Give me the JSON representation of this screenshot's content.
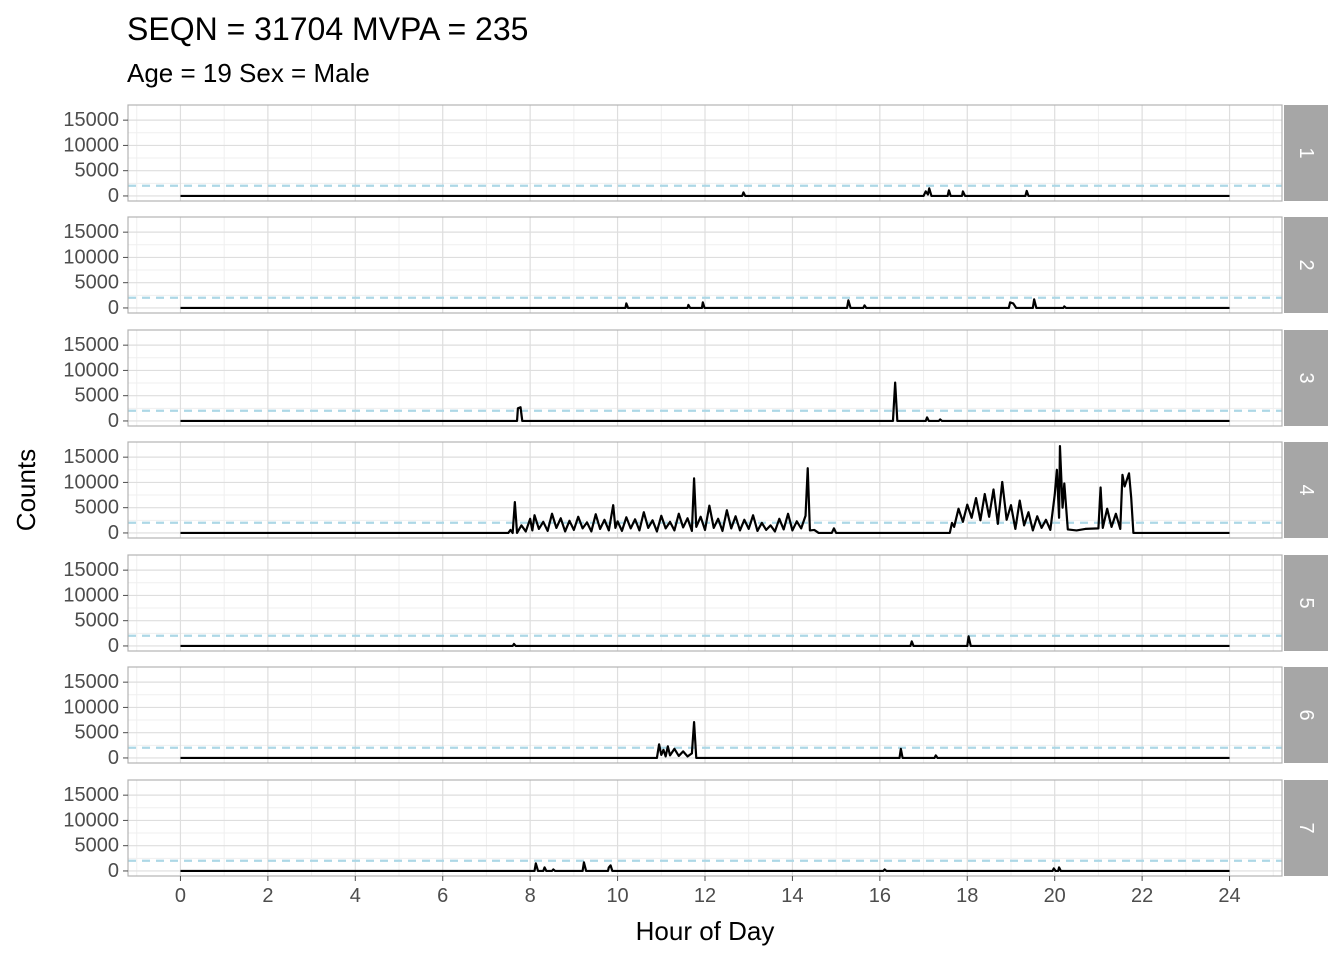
{
  "chart_data": {
    "type": "line",
    "title": "SEQN = 31704 MVPA = 235",
    "subtitle": "Age = 19 Sex = Male",
    "xlabel": "Hour of Day",
    "ylabel": "Counts",
    "xlim": [
      -1.2,
      25.2
    ],
    "ylim": [
      -1000,
      18000
    ],
    "x_ticks": [
      0,
      2,
      4,
      6,
      8,
      10,
      12,
      14,
      16,
      18,
      20,
      22,
      24
    ],
    "y_ticks": [
      0,
      5000,
      10000,
      15000
    ],
    "threshold": 2020,
    "grid": true,
    "colors": {
      "line": "#000000",
      "threshold": "#add8e6",
      "strip_bg": "#a6a6a6",
      "panel_border": "#b3b3b3",
      "grid": "#dedede"
    },
    "panels": [
      {
        "label": "1",
        "points": [
          [
            0,
            0
          ],
          [
            12.85,
            0
          ],
          [
            12.88,
            700
          ],
          [
            12.92,
            0
          ],
          [
            17.0,
            0
          ],
          [
            17.05,
            900
          ],
          [
            17.1,
            300
          ],
          [
            17.13,
            1500
          ],
          [
            17.18,
            0
          ],
          [
            17.55,
            0
          ],
          [
            17.58,
            1100
          ],
          [
            17.62,
            0
          ],
          [
            17.88,
            0
          ],
          [
            17.9,
            900
          ],
          [
            17.95,
            0
          ],
          [
            19.33,
            0
          ],
          [
            19.36,
            1000
          ],
          [
            19.4,
            0
          ],
          [
            24,
            0
          ]
        ]
      },
      {
        "label": "2",
        "points": [
          [
            0,
            0
          ],
          [
            10.18,
            0
          ],
          [
            10.2,
            900
          ],
          [
            10.24,
            0
          ],
          [
            11.6,
            0
          ],
          [
            11.62,
            600
          ],
          [
            11.66,
            0
          ],
          [
            11.93,
            0
          ],
          [
            11.95,
            1100
          ],
          [
            11.99,
            0
          ],
          [
            15.25,
            0
          ],
          [
            15.28,
            1500
          ],
          [
            15.33,
            0
          ],
          [
            15.62,
            0
          ],
          [
            15.65,
            500
          ],
          [
            15.69,
            0
          ],
          [
            18.95,
            0
          ],
          [
            18.98,
            1100
          ],
          [
            19.05,
            900
          ],
          [
            19.12,
            0
          ],
          [
            19.5,
            0
          ],
          [
            19.53,
            1700
          ],
          [
            19.58,
            0
          ],
          [
            20.2,
            0
          ],
          [
            20.22,
            300
          ],
          [
            20.26,
            0
          ],
          [
            24,
            0
          ]
        ]
      },
      {
        "label": "3",
        "points": [
          [
            0,
            0
          ],
          [
            7.7,
            0
          ],
          [
            7.72,
            2500
          ],
          [
            7.78,
            2700
          ],
          [
            7.82,
            0
          ],
          [
            16.3,
            0
          ],
          [
            16.35,
            7600
          ],
          [
            16.4,
            0
          ],
          [
            17.05,
            0
          ],
          [
            17.08,
            700
          ],
          [
            17.12,
            0
          ],
          [
            17.35,
            0
          ],
          [
            17.38,
            300
          ],
          [
            17.42,
            0
          ],
          [
            24,
            0
          ]
        ]
      },
      {
        "label": "4",
        "points": [
          [
            0,
            0
          ],
          [
            7.5,
            0
          ],
          [
            7.55,
            600
          ],
          [
            7.6,
            0
          ],
          [
            7.65,
            6100
          ],
          [
            7.7,
            0
          ],
          [
            7.8,
            1500
          ],
          [
            7.9,
            300
          ],
          [
            8.0,
            2800
          ],
          [
            8.05,
            500
          ],
          [
            8.1,
            3500
          ],
          [
            8.2,
            800
          ],
          [
            8.3,
            2200
          ],
          [
            8.4,
            400
          ],
          [
            8.5,
            3800
          ],
          [
            8.6,
            1000
          ],
          [
            8.7,
            2900
          ],
          [
            8.8,
            300
          ],
          [
            8.9,
            2400
          ],
          [
            9.0,
            600
          ],
          [
            9.1,
            3200
          ],
          [
            9.2,
            900
          ],
          [
            9.3,
            2100
          ],
          [
            9.4,
            300
          ],
          [
            9.5,
            3700
          ],
          [
            9.6,
            800
          ],
          [
            9.7,
            2600
          ],
          [
            9.8,
            500
          ],
          [
            9.9,
            5500
          ],
          [
            9.95,
            1000
          ],
          [
            10.0,
            2300
          ],
          [
            10.1,
            400
          ],
          [
            10.2,
            3100
          ],
          [
            10.3,
            900
          ],
          [
            10.4,
            2700
          ],
          [
            10.5,
            500
          ],
          [
            10.6,
            4100
          ],
          [
            10.7,
            1000
          ],
          [
            10.8,
            2500
          ],
          [
            10.9,
            300
          ],
          [
            11.0,
            3400
          ],
          [
            11.1,
            900
          ],
          [
            11.2,
            2200
          ],
          [
            11.3,
            500
          ],
          [
            11.4,
            3800
          ],
          [
            11.5,
            1100
          ],
          [
            11.6,
            2900
          ],
          [
            11.7,
            400
          ],
          [
            11.75,
            10800
          ],
          [
            11.8,
            1200
          ],
          [
            11.9,
            3200
          ],
          [
            12.0,
            600
          ],
          [
            12.1,
            5400
          ],
          [
            12.2,
            1000
          ],
          [
            12.3,
            2800
          ],
          [
            12.4,
            400
          ],
          [
            12.5,
            4500
          ],
          [
            12.6,
            900
          ],
          [
            12.7,
            3300
          ],
          [
            12.8,
            500
          ],
          [
            12.9,
            2600
          ],
          [
            13.0,
            800
          ],
          [
            13.1,
            3500
          ],
          [
            13.2,
            400
          ],
          [
            13.3,
            2000
          ],
          [
            13.4,
            600
          ],
          [
            13.5,
            1500
          ],
          [
            13.6,
            300
          ],
          [
            13.7,
            2800
          ],
          [
            13.8,
            700
          ],
          [
            13.9,
            3800
          ],
          [
            14.0,
            500
          ],
          [
            14.1,
            2300
          ],
          [
            14.2,
            900
          ],
          [
            14.3,
            3400
          ],
          [
            14.35,
            12800
          ],
          [
            14.4,
            500
          ],
          [
            14.5,
            600
          ],
          [
            14.6,
            0
          ],
          [
            14.9,
            0
          ],
          [
            14.95,
            900
          ],
          [
            15.0,
            0
          ],
          [
            17.6,
            0
          ],
          [
            17.65,
            2000
          ],
          [
            17.7,
            1200
          ],
          [
            17.8,
            4800
          ],
          [
            17.9,
            2200
          ],
          [
            18.0,
            5600
          ],
          [
            18.1,
            3000
          ],
          [
            18.2,
            6900
          ],
          [
            18.3,
            2500
          ],
          [
            18.4,
            7700
          ],
          [
            18.5,
            3200
          ],
          [
            18.6,
            8600
          ],
          [
            18.7,
            1800
          ],
          [
            18.8,
            10100
          ],
          [
            18.9,
            2600
          ],
          [
            19.0,
            5500
          ],
          [
            19.1,
            800
          ],
          [
            19.2,
            6400
          ],
          [
            19.3,
            1500
          ],
          [
            19.4,
            4100
          ],
          [
            19.5,
            500
          ],
          [
            19.6,
            3300
          ],
          [
            19.7,
            1000
          ],
          [
            19.8,
            2600
          ],
          [
            19.9,
            600
          ],
          [
            20.0,
            7500
          ],
          [
            20.05,
            12500
          ],
          [
            20.1,
            3000
          ],
          [
            20.12,
            17200
          ],
          [
            20.18,
            5000
          ],
          [
            20.22,
            9800
          ],
          [
            20.3,
            700
          ],
          [
            20.5,
            500
          ],
          [
            20.7,
            800
          ],
          [
            21.0,
            900
          ],
          [
            21.05,
            9000
          ],
          [
            21.1,
            1000
          ],
          [
            21.2,
            4800
          ],
          [
            21.3,
            1200
          ],
          [
            21.4,
            3800
          ],
          [
            21.5,
            800
          ],
          [
            21.55,
            11500
          ],
          [
            21.6,
            9200
          ],
          [
            21.7,
            11800
          ],
          [
            21.75,
            7000
          ],
          [
            21.8,
            0
          ],
          [
            24,
            0
          ]
        ]
      },
      {
        "label": "5",
        "points": [
          [
            0,
            0
          ],
          [
            7.6,
            0
          ],
          [
            7.63,
            400
          ],
          [
            7.67,
            0
          ],
          [
            16.7,
            0
          ],
          [
            16.73,
            900
          ],
          [
            16.77,
            0
          ],
          [
            18.0,
            0
          ],
          [
            18.03,
            1900
          ],
          [
            18.08,
            0
          ],
          [
            24,
            0
          ]
        ]
      },
      {
        "label": "6",
        "points": [
          [
            0,
            0
          ],
          [
            10.9,
            0
          ],
          [
            10.95,
            2700
          ],
          [
            11.0,
            600
          ],
          [
            11.05,
            1600
          ],
          [
            11.1,
            300
          ],
          [
            11.15,
            2300
          ],
          [
            11.2,
            500
          ],
          [
            11.3,
            1800
          ],
          [
            11.4,
            400
          ],
          [
            11.5,
            1300
          ],
          [
            11.6,
            300
          ],
          [
            11.7,
            900
          ],
          [
            11.75,
            7100
          ],
          [
            11.8,
            0
          ],
          [
            16.45,
            0
          ],
          [
            16.48,
            1800
          ],
          [
            16.52,
            0
          ],
          [
            17.25,
            0
          ],
          [
            17.28,
            500
          ],
          [
            17.32,
            0
          ],
          [
            24,
            0
          ]
        ]
      },
      {
        "label": "7",
        "points": [
          [
            0,
            0
          ],
          [
            8.1,
            0
          ],
          [
            8.13,
            1500
          ],
          [
            8.18,
            0
          ],
          [
            8.3,
            0
          ],
          [
            8.33,
            700
          ],
          [
            8.37,
            0
          ],
          [
            8.5,
            0
          ],
          [
            8.53,
            300
          ],
          [
            8.57,
            0
          ],
          [
            9.2,
            0
          ],
          [
            9.23,
            1700
          ],
          [
            9.28,
            0
          ],
          [
            9.78,
            0
          ],
          [
            9.8,
            700
          ],
          [
            9.84,
            1100
          ],
          [
            9.88,
            0
          ],
          [
            16.08,
            0
          ],
          [
            16.11,
            300
          ],
          [
            16.15,
            0
          ],
          [
            19.95,
            0
          ],
          [
            19.98,
            500
          ],
          [
            20.02,
            0
          ],
          [
            20.08,
            0
          ],
          [
            20.1,
            700
          ],
          [
            20.14,
            0
          ],
          [
            24,
            0
          ]
        ]
      }
    ]
  }
}
